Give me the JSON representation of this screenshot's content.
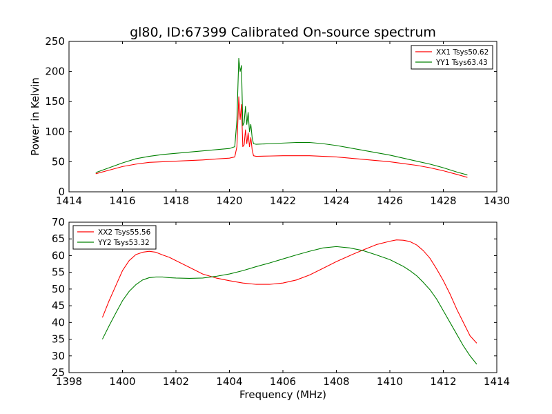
{
  "figure": {
    "title": "gl80, ID:67399 Calibrated On-source spectrum",
    "ylabel": "Power in Kelvin",
    "xlabel": "Frequency (MHz)"
  },
  "chart_data": [
    {
      "type": "line",
      "title": "gl80, ID:67399 Calibrated On-source spectrum",
      "xlabel": "",
      "ylabel": "Power in Kelvin",
      "xlim": [
        1414,
        1430
      ],
      "ylim": [
        0,
        250
      ],
      "xticks": [
        "1414",
        "1416",
        "1418",
        "1420",
        "1422",
        "1424",
        "1426",
        "1428",
        "1430"
      ],
      "yticks": [
        "0",
        "50",
        "100",
        "150",
        "200",
        "250"
      ],
      "legend_position": "top-right",
      "series": [
        {
          "name": "XX1 Tsys50.62",
          "color": "#ff0000",
          "x": [
            1415.0,
            1415.5,
            1416.0,
            1416.5,
            1417.0,
            1417.5,
            1418.0,
            1418.5,
            1419.0,
            1419.5,
            1420.0,
            1420.2,
            1420.28,
            1420.35,
            1420.4,
            1420.45,
            1420.5,
            1420.55,
            1420.6,
            1420.65,
            1420.7,
            1420.75,
            1420.8,
            1420.85,
            1420.9,
            1421.0,
            1421.5,
            1422.0,
            1422.5,
            1423.0,
            1423.5,
            1424.0,
            1424.5,
            1425.0,
            1425.5,
            1426.0,
            1426.5,
            1427.0,
            1427.5,
            1428.0,
            1428.5,
            1428.9
          ],
          "y": [
            30,
            36,
            42,
            46,
            49,
            50,
            51,
            52,
            53,
            54.5,
            56,
            58,
            75,
            158,
            120,
            145,
            75,
            78,
            103,
            80,
            98,
            75,
            90,
            70,
            60,
            59,
            59.5,
            60,
            60,
            60,
            59,
            58,
            56,
            54,
            52,
            50,
            47,
            44,
            40,
            35,
            29,
            24
          ]
        },
        {
          "name": "YY1 Tsys63.43",
          "color": "#008000",
          "x": [
            1415.0,
            1415.5,
            1416.0,
            1416.5,
            1417.0,
            1417.5,
            1418.0,
            1418.5,
            1419.0,
            1419.5,
            1420.0,
            1420.2,
            1420.28,
            1420.35,
            1420.4,
            1420.45,
            1420.5,
            1420.55,
            1420.6,
            1420.65,
            1420.7,
            1420.75,
            1420.8,
            1420.85,
            1420.9,
            1421.0,
            1421.5,
            1422.0,
            1422.5,
            1423.0,
            1423.5,
            1424.0,
            1424.5,
            1425.0,
            1425.5,
            1426.0,
            1426.5,
            1427.0,
            1427.5,
            1428.0,
            1428.5,
            1428.9
          ],
          "y": [
            32,
            40,
            48,
            55,
            59,
            62,
            64,
            66,
            68,
            70,
            72,
            75,
            120,
            222,
            200,
            210,
            110,
            115,
            142,
            112,
            132,
            100,
            112,
            90,
            80,
            79,
            80,
            81,
            82,
            82,
            80,
            77,
            73,
            69,
            65,
            61,
            56,
            51,
            46,
            40,
            33,
            28
          ]
        }
      ]
    },
    {
      "type": "line",
      "title": "",
      "xlabel": "Frequency (MHz)",
      "ylabel": "",
      "xlim": [
        1398,
        1414
      ],
      "ylim": [
        25,
        70
      ],
      "xticks": [
        "1398",
        "1400",
        "1402",
        "1404",
        "1406",
        "1408",
        "1410",
        "1412",
        "1414"
      ],
      "yticks": [
        "25",
        "30",
        "35",
        "40",
        "45",
        "50",
        "55",
        "60",
        "65",
        "70"
      ],
      "legend_position": "top-left",
      "series": [
        {
          "name": "XX2 Tsys55.56",
          "color": "#ff0000",
          "x": [
            1399.25,
            1399.5,
            1399.75,
            1400.0,
            1400.25,
            1400.5,
            1400.75,
            1401.0,
            1401.25,
            1401.5,
            1401.75,
            1402.0,
            1402.5,
            1403.0,
            1403.5,
            1404.0,
            1404.5,
            1405.0,
            1405.5,
            1406.0,
            1406.5,
            1407.0,
            1407.5,
            1408.0,
            1408.5,
            1409.0,
            1409.5,
            1410.0,
            1410.25,
            1410.5,
            1410.75,
            1411.0,
            1411.25,
            1411.5,
            1411.75,
            1412.0,
            1412.25,
            1412.5,
            1412.75,
            1413.0,
            1413.25
          ],
          "y": [
            41.5,
            46.5,
            51,
            55.5,
            58.5,
            60.3,
            61.0,
            61.3,
            61.0,
            60.2,
            59.5,
            58.5,
            56.5,
            54.5,
            53.3,
            52.5,
            51.8,
            51.4,
            51.4,
            51.8,
            52.7,
            54.2,
            56.2,
            58.2,
            60.0,
            61.7,
            63.3,
            64.3,
            64.7,
            64.6,
            64.2,
            63.2,
            61.5,
            59.2,
            56.0,
            52.5,
            48.5,
            44.0,
            40.0,
            36.0,
            33.8
          ]
        },
        {
          "name": "YY2 Tsys53.32",
          "color": "#008000",
          "x": [
            1399.25,
            1399.5,
            1399.75,
            1400.0,
            1400.25,
            1400.5,
            1400.75,
            1401.0,
            1401.25,
            1401.5,
            1401.75,
            1402.0,
            1402.5,
            1403.0,
            1403.5,
            1404.0,
            1404.5,
            1405.0,
            1405.5,
            1406.0,
            1406.5,
            1407.0,
            1407.5,
            1408.0,
            1408.5,
            1409.0,
            1409.5,
            1410.0,
            1410.25,
            1410.5,
            1410.75,
            1411.0,
            1411.25,
            1411.5,
            1411.75,
            1412.0,
            1412.25,
            1412.5,
            1412.75,
            1413.0,
            1413.25
          ],
          "y": [
            35.0,
            39.0,
            42.8,
            46.5,
            49.3,
            51.3,
            52.7,
            53.4,
            53.6,
            53.6,
            53.4,
            53.3,
            53.2,
            53.3,
            53.8,
            54.5,
            55.5,
            56.7,
            57.8,
            59.0,
            60.2,
            61.3,
            62.3,
            62.7,
            62.3,
            61.5,
            60.2,
            58.8,
            57.8,
            56.8,
            55.5,
            54.0,
            52.0,
            49.8,
            47.0,
            43.5,
            40.0,
            36.5,
            33.0,
            30.0,
            27.5
          ]
        }
      ]
    }
  ]
}
